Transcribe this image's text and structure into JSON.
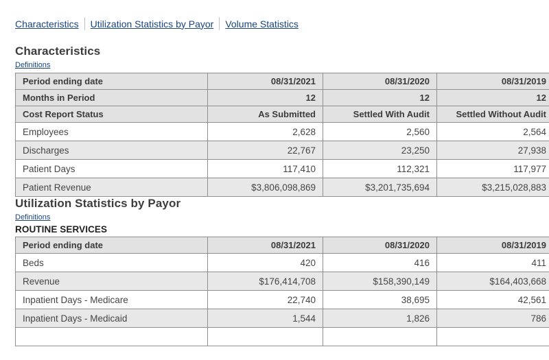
{
  "nav": {
    "links": [
      {
        "id": "characteristics",
        "label": "Characteristics"
      },
      {
        "id": "utilization-statistics-by-payor",
        "label": "Utilization Statistics by Payor"
      },
      {
        "id": "volume-statistics",
        "label": "Volume Statistics"
      }
    ]
  },
  "sections": [
    {
      "id": "characteristics",
      "title": "Characteristics",
      "definitions_label": "Definitions",
      "subheading": "",
      "table": {
        "header_rows": [
          {
            "label": "Period ending date",
            "values": [
              "08/31/2021",
              "08/31/2020",
              "08/31/2019"
            ]
          },
          {
            "label": "Months in Period",
            "values": [
              "12",
              "12",
              "12"
            ]
          },
          {
            "label": "Cost Report Status",
            "values": [
              "As Submitted",
              "Settled With Audit",
              "Settled Without Audit"
            ]
          }
        ],
        "data_rows": [
          {
            "label": "Employees",
            "values": [
              "2,628",
              "2,560",
              "2,564"
            ]
          },
          {
            "label": "Discharges",
            "values": [
              "22,767",
              "23,250",
              "27,938"
            ]
          },
          {
            "label": "Patient Days",
            "values": [
              "117,410",
              "112,321",
              "117,977"
            ]
          },
          {
            "label": "Patient Revenue",
            "values": [
              "$3,806,098,869",
              "$3,201,735,694",
              "$3,215,028,883"
            ]
          }
        ]
      }
    },
    {
      "id": "utilization-statistics-by-payor",
      "title": "Utilization Statistics by Payor",
      "definitions_label": "Definitions",
      "subheading": "ROUTINE SERVICES",
      "table": {
        "header_rows": [
          {
            "label": "Period ending date",
            "values": [
              "08/31/2021",
              "08/31/2020",
              "08/31/2019"
            ]
          }
        ],
        "data_rows": [
          {
            "label": "Beds",
            "values": [
              "420",
              "416",
              "411"
            ]
          },
          {
            "label": "Revenue",
            "values": [
              "$176,414,708",
              "$158,390,149",
              "$164,403,668"
            ]
          },
          {
            "label": "Inpatient Days - Medicare",
            "values": [
              "22,740",
              "38,695",
              "42,561"
            ]
          },
          {
            "label": "Inpatient Days - Medicaid",
            "values": [
              "1,544",
              "1,826",
              "786"
            ]
          }
        ]
      }
    }
  ],
  "colors": {
    "link": "#1a4480",
    "heading_text": "#3d3d3d",
    "table_header_bg": "#e2e2e2",
    "row_alt_bg": "#e8e8e9",
    "border": "#8f8f8f"
  }
}
